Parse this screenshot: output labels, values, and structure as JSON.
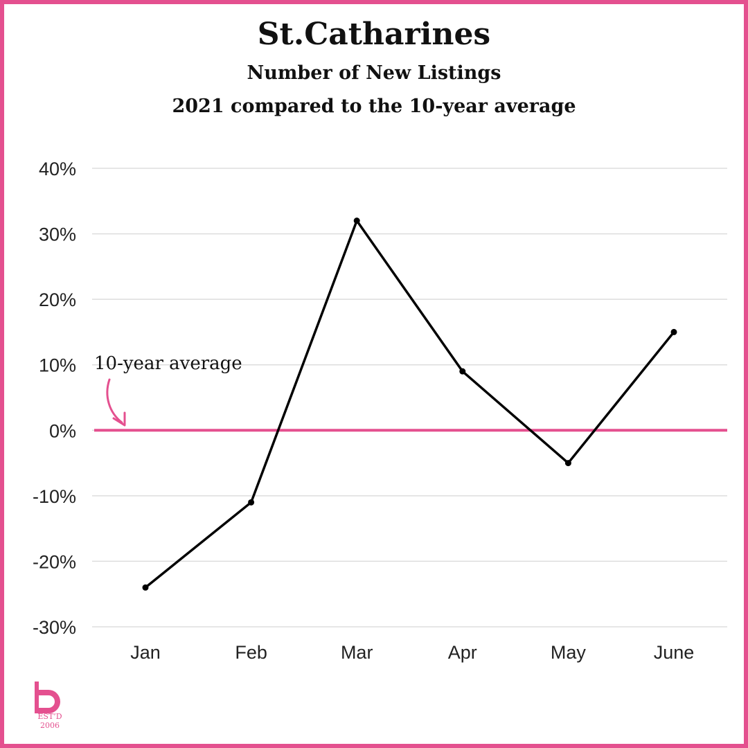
{
  "title": "St.Catharines",
  "subtitle": "Number of New Listings",
  "subtitle2": "2021 compared to the 10-year average",
  "annotation": "10-year average",
  "logo": {
    "text": "EST’D 2006"
  },
  "colors": {
    "border": "#e4508f",
    "reference_line": "#e4508f",
    "series_line": "#000000",
    "grid": "#dddddd"
  },
  "chart_data": {
    "type": "line",
    "categories": [
      "Jan",
      "Feb",
      "Mar",
      "Apr",
      "May",
      "June"
    ],
    "values": [
      -24,
      -11,
      32,
      9,
      -5,
      15
    ],
    "yticks": [
      "40%",
      "30%",
      "20%",
      "10%",
      "0%",
      "-10%",
      "-20%",
      "-30%"
    ],
    "ylim": [
      -30,
      40
    ],
    "reference_line": 0,
    "grid": true,
    "markers": true
  }
}
